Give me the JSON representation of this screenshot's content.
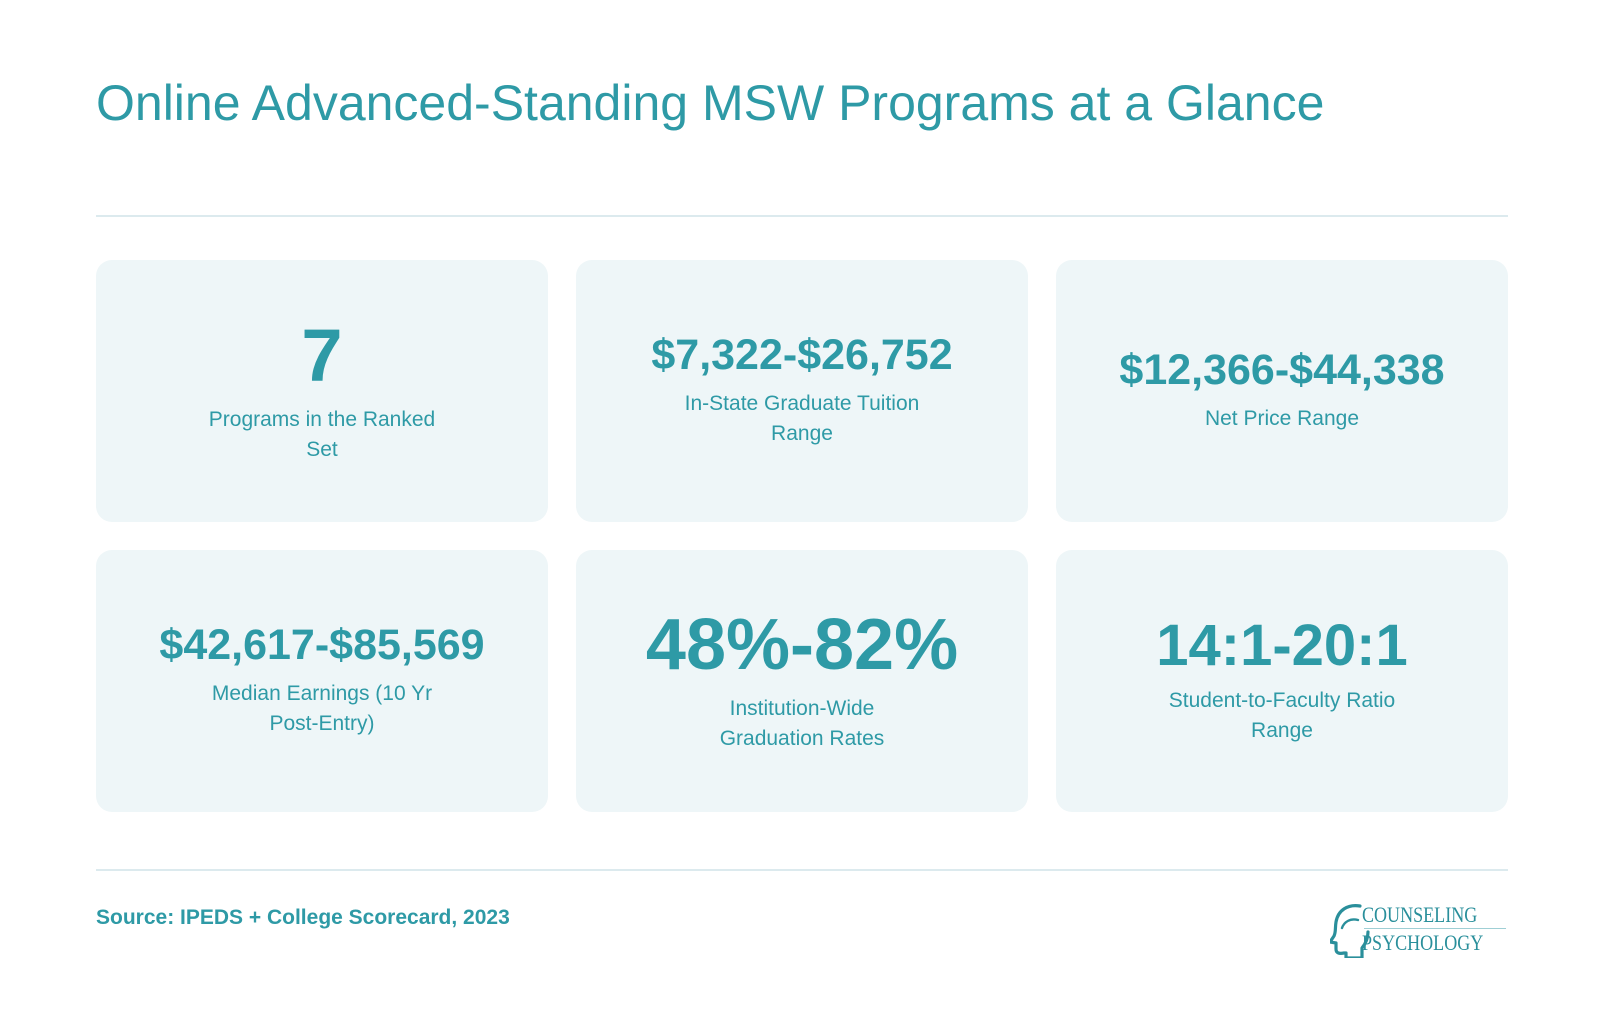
{
  "header": {
    "title": "Online Advanced-Standing MSW Programs at a Glance"
  },
  "stats": [
    {
      "value": "7",
      "label": "Programs in the Ranked Set"
    },
    {
      "value": "$7,322-$26,752",
      "label": "In-State Graduate Tuition Range"
    },
    {
      "value": "$12,366-$44,338",
      "label": "Net Price Range"
    },
    {
      "value": "$42,617-$85,569",
      "label": "Median Earnings (10 Yr Post-Entry)"
    },
    {
      "value": "48%-82%",
      "label": "Institution-Wide Graduation Rates"
    },
    {
      "value": "14:1-20:1",
      "label": "Student-to-Faculty Ratio Range"
    }
  ],
  "footer": {
    "source": "Source: IPEDS + College Scorecard, 2023",
    "logo": {
      "line1": "COUNSELING",
      "line2": "PSYCHOLOGY",
      "icon": "head-profile-icon"
    }
  },
  "colors": {
    "accent": "#2e9aa6",
    "card_background": "#eef6f8",
    "divider": "#dceaee"
  }
}
